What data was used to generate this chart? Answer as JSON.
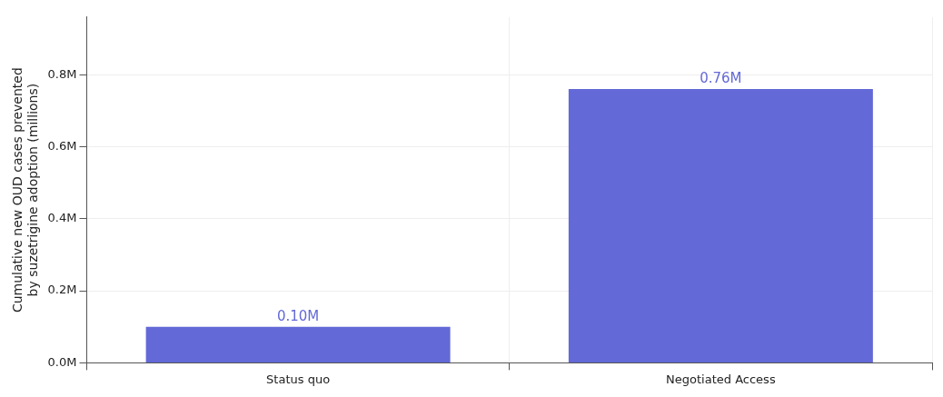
{
  "chart_data": {
    "type": "bar",
    "ylabel": "Cumulative new OUD cases prevented\nby suzetrigine adoption (millions)",
    "categories": [
      "Status quo",
      "Negotiated Access"
    ],
    "values": [
      0.1,
      0.76
    ],
    "color": "#6369d6",
    "value_labels": [
      "0.10M",
      "0.76M"
    ],
    "ylim": [
      0,
      0.96
    ],
    "yticks": [
      {
        "value": 0,
        "label": "0.0M"
      },
      {
        "value": 0.2,
        "label": "0.2M"
      },
      {
        "value": 0.4,
        "label": "0.4M"
      },
      {
        "value": 0.6,
        "label": "0.6M"
      },
      {
        "value": 0.8,
        "label": "0.8M"
      }
    ],
    "grid": true,
    "legend": false
  }
}
